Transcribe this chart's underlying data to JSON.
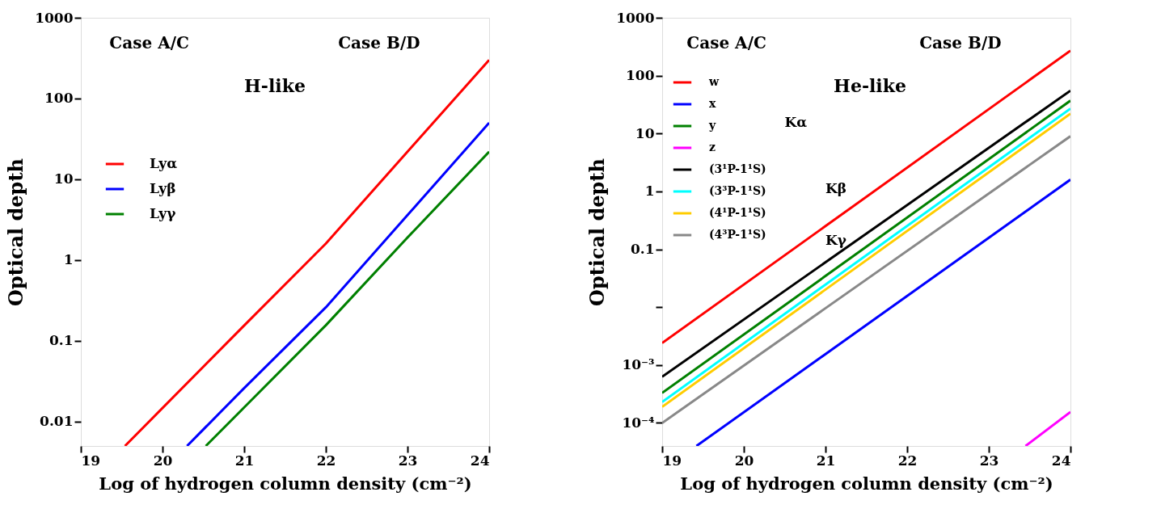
{
  "chart_data": [
    {
      "type": "line",
      "xlabel": "Log of hydrogen column density (cm⁻²)",
      "ylabel": "Optical depth",
      "log": "y",
      "grid": false,
      "legend": "left",
      "line_style": "solid",
      "marker": "none",
      "annotations": [
        "Case A/C",
        "Case B/D",
        "H-like"
      ],
      "xlim": [
        19,
        24
      ],
      "xticks": [
        19,
        20,
        21,
        22,
        23,
        24
      ],
      "ylim": [
        0.005,
        1000
      ],
      "yticks": [
        0.01,
        0.1,
        1,
        10,
        100,
        1000
      ],
      "series": [
        {
          "name": "Lyα",
          "color": "#ff0000",
          "x": [
            19.54,
            21,
            22,
            23,
            24
          ],
          "values": [
            0.005,
            0.155,
            1.6,
            22,
            300
          ]
        },
        {
          "name": "Lyβ",
          "color": "#0000ff",
          "x": [
            20.3,
            21,
            22,
            23,
            24
          ],
          "values": [
            0.005,
            0.026,
            0.26,
            3.6,
            50
          ]
        },
        {
          "name": "Lyγ",
          "color": "#008000",
          "x": [
            20.53,
            21,
            22,
            23,
            24
          ],
          "values": [
            0.005,
            0.015,
            0.156,
            1.9,
            22
          ]
        }
      ]
    },
    {
      "type": "line",
      "xlabel": "Log of hydrogen column density (cm⁻²)",
      "ylabel": "Optical depth",
      "log": "y",
      "grid": false,
      "legend": "top left",
      "line_style": "solid",
      "marker": "none",
      "annotations": [
        "Case A/C",
        "Case B/D",
        "He-like",
        "Kα",
        "Kβ",
        "Kγ"
      ],
      "xlim": [
        19,
        24
      ],
      "xticks": [
        19,
        20,
        21,
        22,
        23,
        24
      ],
      "ylim": [
        4e-05,
        1000
      ],
      "yticks": [
        {
          "value": 0.0001,
          "label": "10⁻⁴"
        },
        {
          "value": 0.001,
          "label": "10⁻³"
        },
        {
          "value": 0.01,
          "label": null
        },
        0.1,
        1,
        10,
        100,
        1000
      ],
      "series": [
        {
          "name": "w",
          "color": "#ff0000",
          "x": [
            19,
            24
          ],
          "values": [
            0.0024,
            270
          ]
        },
        {
          "name": "x",
          "color": "#0000ff",
          "x": [
            19.42,
            24
          ],
          "values": [
            4e-05,
            1.6
          ]
        },
        {
          "name": "y",
          "color": "#008000",
          "x": [
            19,
            24
          ],
          "values": [
            0.00033,
            37
          ]
        },
        {
          "name": "z",
          "color": "#ff00ff",
          "x": [
            23.45,
            24
          ],
          "values": [
            4e-05,
            0.000155
          ]
        },
        {
          "name": "(3¹P-1¹S)",
          "color": "#000000",
          "x": [
            19,
            24
          ],
          "values": [
            0.00063,
            55
          ]
        },
        {
          "name": "(3³P-1¹S)",
          "color": "#00ffff",
          "x": [
            19,
            24
          ],
          "values": [
            0.00023,
            27
          ]
        },
        {
          "name": "(4¹P-1¹S)",
          "color": "#ffcc00",
          "x": [
            19,
            24
          ],
          "values": [
            0.00019,
            22
          ]
        },
        {
          "name": "(4³P-1¹S)",
          "color": "#888888",
          "x": [
            19,
            24
          ],
          "values": [
            0.0001,
            9
          ]
        }
      ]
    }
  ]
}
